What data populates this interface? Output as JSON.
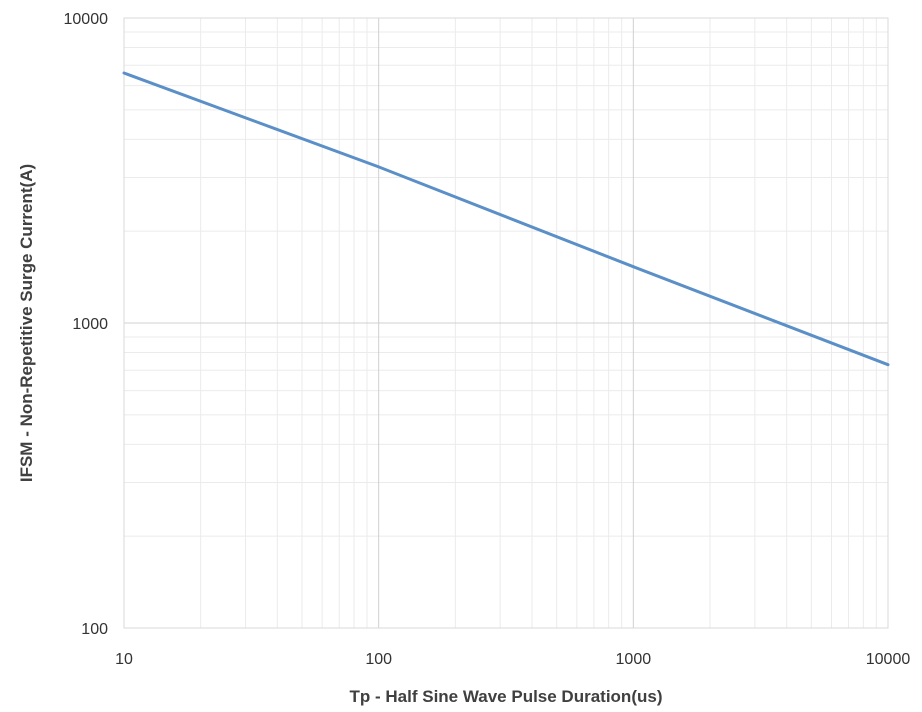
{
  "chart_data": {
    "type": "line",
    "title": "",
    "xlabel": "Tp - Half Sine Wave Pulse Duration(us)",
    "ylabel": "IFSM - Non-Repetitive Surge Current(A)",
    "x_scale": "log",
    "y_scale": "log",
    "xlim": [
      10,
      10000
    ],
    "ylim": [
      100,
      10000
    ],
    "x_ticks": [
      "10",
      "100",
      "1000",
      "10000"
    ],
    "y_ticks": [
      "100",
      "1000",
      "10000"
    ],
    "grid": true,
    "legend": "none",
    "series": [
      {
        "color": "#5b8fc7",
        "x": [
          10,
          100,
          1000,
          10000
        ],
        "y": [
          6600,
          3250,
          1530,
          730
        ]
      }
    ]
  }
}
